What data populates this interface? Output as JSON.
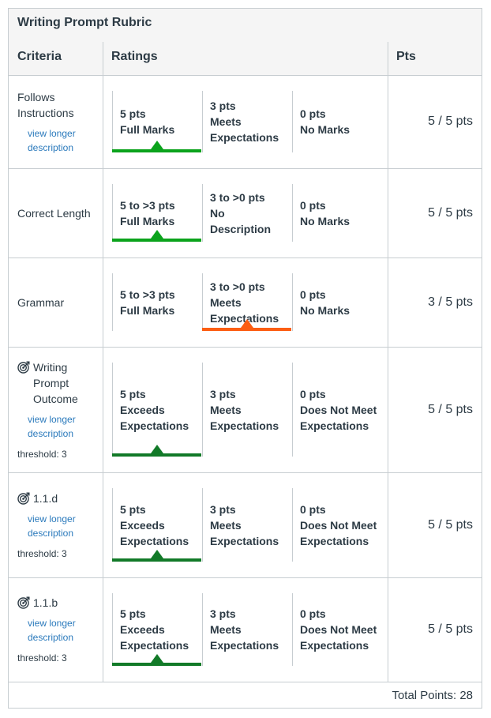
{
  "rubric": {
    "title": "Writing Prompt Rubric",
    "headers": {
      "criteria": "Criteria",
      "ratings": "Ratings",
      "pts": "Pts"
    },
    "link_text": "view longer description",
    "total": "Total Points: 28",
    "colors": {
      "green": "#0ba31c",
      "dark_green": "#127a28",
      "orange": "#fc5e13",
      "link": "#2b7abc"
    },
    "rows": [
      {
        "criterion": "Follows Instructions",
        "has_link": true,
        "outcome": false,
        "threshold": "",
        "points": "5 / 5 pts",
        "ratings": [
          {
            "pts": "5 pts",
            "desc": "Full Marks",
            "selected": "green"
          },
          {
            "pts": "3 pts",
            "desc": "Meets Expectations",
            "selected": ""
          },
          {
            "pts": "0 pts",
            "desc": "No Marks",
            "selected": ""
          }
        ]
      },
      {
        "criterion": "Correct Length",
        "has_link": false,
        "outcome": false,
        "threshold": "",
        "points": "5 / 5 pts",
        "ratings": [
          {
            "pts": "5 to >3 pts",
            "desc": "Full Marks",
            "selected": "green"
          },
          {
            "pts": "3 to >0 pts",
            "desc": "No Description",
            "selected": ""
          },
          {
            "pts": "0 pts",
            "desc": "No Marks",
            "selected": ""
          }
        ]
      },
      {
        "criterion": "Grammar",
        "has_link": false,
        "outcome": false,
        "threshold": "",
        "points": "3 / 5 pts",
        "ratings": [
          {
            "pts": "5 to >3 pts",
            "desc": "Full Marks",
            "selected": ""
          },
          {
            "pts": "3 to >0 pts",
            "desc": "Meets Expectations",
            "selected": "orange"
          },
          {
            "pts": "0 pts",
            "desc": "No Marks",
            "selected": ""
          }
        ]
      },
      {
        "criterion": "Writing Prompt Outcome",
        "has_link": true,
        "outcome": true,
        "threshold": "threshold: 3",
        "points": "5 / 5 pts",
        "ratings": [
          {
            "pts": "5 pts",
            "desc": "Exceeds Expectations",
            "selected": "dark_green"
          },
          {
            "pts": "3 pts",
            "desc": "Meets Expectations",
            "selected": ""
          },
          {
            "pts": "0 pts",
            "desc": "Does Not Meet Expectations",
            "selected": ""
          }
        ]
      },
      {
        "criterion": "1.1.d",
        "has_link": true,
        "outcome": true,
        "threshold": "threshold: 3",
        "points": "5 / 5 pts",
        "ratings": [
          {
            "pts": "5 pts",
            "desc": "Exceeds Expectations",
            "selected": "dark_green"
          },
          {
            "pts": "3 pts",
            "desc": "Meets Expectations",
            "selected": ""
          },
          {
            "pts": "0 pts",
            "desc": "Does Not Meet Expectations",
            "selected": ""
          }
        ]
      },
      {
        "criterion": "1.1.b",
        "has_link": true,
        "outcome": true,
        "threshold": "threshold: 3",
        "points": "5 / 5 pts",
        "ratings": [
          {
            "pts": "5 pts",
            "desc": "Exceeds Expectations",
            "selected": "dark_green"
          },
          {
            "pts": "3 pts",
            "desc": "Meets Expectations",
            "selected": ""
          },
          {
            "pts": "0 pts",
            "desc": "Does Not Meet Expectations",
            "selected": ""
          }
        ]
      }
    ]
  }
}
